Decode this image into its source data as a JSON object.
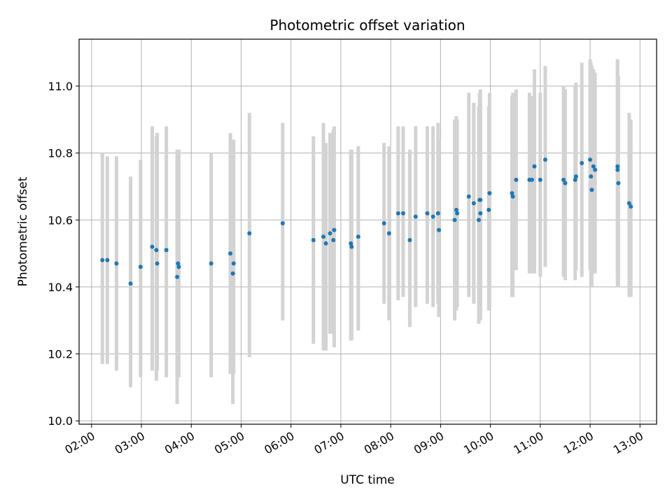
{
  "chart_data": {
    "type": "scatter",
    "title": "Photometric offset variation",
    "xlabel": "UTC time",
    "ylabel": "Photometric offset",
    "x_axis": "time",
    "xlim": [
      "01:45",
      "13:20"
    ],
    "ylim": [
      9.99,
      11.14
    ],
    "grid": true,
    "x_ticks": [
      "02:00",
      "03:00",
      "04:00",
      "05:00",
      "06:00",
      "07:00",
      "08:00",
      "09:00",
      "10:00",
      "11:00",
      "12:00",
      "13:00"
    ],
    "y_ticks": [
      "10.0",
      "10.2",
      "10.4",
      "10.6",
      "10.8",
      "11.0"
    ],
    "marker_color": "#1f77b4",
    "errorbar_color": "#d3d3d3",
    "series": [
      {
        "x": [
          "02:13",
          "02:19",
          "02:30",
          "02:47",
          "02:59",
          "03:13",
          "03:18",
          "03:19",
          "03:30",
          "03:43",
          "03:44",
          "03:45",
          "04:24",
          "04:47",
          "04:50",
          "04:51",
          "05:10",
          "05:50",
          "06:27",
          "06:39",
          "06:42",
          "06:47",
          "06:51",
          "06:52",
          "07:12",
          "07:13",
          "07:21",
          "07:52",
          "07:58",
          "08:09",
          "08:15",
          "08:23",
          "08:30",
          "08:44",
          "08:51",
          "08:57",
          "08:58",
          "09:17",
          "09:19",
          "09:20",
          "09:34",
          "09:40",
          "09:46",
          "09:47",
          "09:48",
          "09:48",
          "09:58",
          "09:59",
          "10:26",
          "10:27",
          "10:31",
          "10:47",
          "10:50",
          "10:53",
          "11:00",
          "11:06",
          "11:28",
          "11:30",
          "11:42",
          "11:43",
          "11:50",
          "12:00",
          "12:01",
          "12:02",
          "12:04",
          "12:06",
          "12:33",
          "12:33",
          "12:34",
          "12:47",
          "12:49"
        ],
        "y": [
          10.48,
          10.48,
          10.47,
          10.41,
          10.46,
          10.52,
          10.51,
          10.47,
          10.51,
          10.43,
          10.47,
          10.46,
          10.47,
          10.5,
          10.44,
          10.47,
          10.56,
          10.59,
          10.54,
          10.55,
          10.53,
          10.56,
          10.54,
          10.57,
          10.53,
          10.52,
          10.55,
          10.59,
          10.56,
          10.62,
          10.62,
          10.54,
          10.61,
          10.62,
          10.61,
          10.62,
          10.57,
          10.6,
          10.63,
          10.62,
          10.67,
          10.65,
          10.6,
          10.66,
          10.62,
          10.66,
          10.63,
          10.68,
          10.68,
          10.67,
          10.72,
          10.72,
          10.72,
          10.76,
          10.72,
          10.78,
          10.72,
          10.71,
          10.72,
          10.73,
          10.77,
          10.78,
          10.73,
          10.69,
          10.76,
          10.75,
          10.76,
          10.75,
          10.71,
          10.65,
          10.64
        ],
        "yerr_low": [
          10.17,
          10.17,
          10.15,
          10.1,
          10.13,
          10.15,
          10.12,
          10.15,
          10.13,
          10.05,
          10.13,
          10.13,
          10.13,
          10.14,
          10.05,
          10.14,
          10.19,
          10.3,
          10.23,
          10.21,
          10.21,
          10.26,
          10.26,
          10.22,
          10.24,
          10.24,
          10.27,
          10.35,
          10.3,
          10.36,
          10.37,
          10.28,
          10.34,
          10.35,
          10.34,
          10.35,
          10.31,
          10.3,
          10.33,
          10.34,
          10.37,
          10.35,
          10.29,
          10.34,
          10.3,
          10.34,
          10.33,
          10.33,
          10.37,
          10.37,
          10.45,
          10.44,
          10.44,
          10.44,
          10.43,
          10.46,
          10.43,
          10.42,
          10.42,
          10.45,
          10.43,
          10.45,
          10.4,
          10.4,
          10.44,
          10.44,
          10.43,
          10.4,
          10.4,
          10.37,
          10.37
        ],
        "yerr_high": [
          10.8,
          10.79,
          10.79,
          10.73,
          10.78,
          10.88,
          10.85,
          10.86,
          10.88,
          10.81,
          10.81,
          10.81,
          10.8,
          10.86,
          10.82,
          10.84,
          10.92,
          10.89,
          10.85,
          10.89,
          10.83,
          10.86,
          10.87,
          10.88,
          10.81,
          10.81,
          10.82,
          10.83,
          10.82,
          10.88,
          10.88,
          10.81,
          10.88,
          10.88,
          10.88,
          10.89,
          10.84,
          10.9,
          10.91,
          10.9,
          10.98,
          10.95,
          10.94,
          10.98,
          10.94,
          10.99,
          10.94,
          10.98,
          10.97,
          10.98,
          10.99,
          10.98,
          10.97,
          11.05,
          10.98,
          11.06,
          11.0,
          10.99,
          11.0,
          11.01,
          11.07,
          11.08,
          11.07,
          11.06,
          11.05,
          11.04,
          11.08,
          11.08,
          11.03,
          10.92,
          10.9
        ]
      }
    ]
  }
}
